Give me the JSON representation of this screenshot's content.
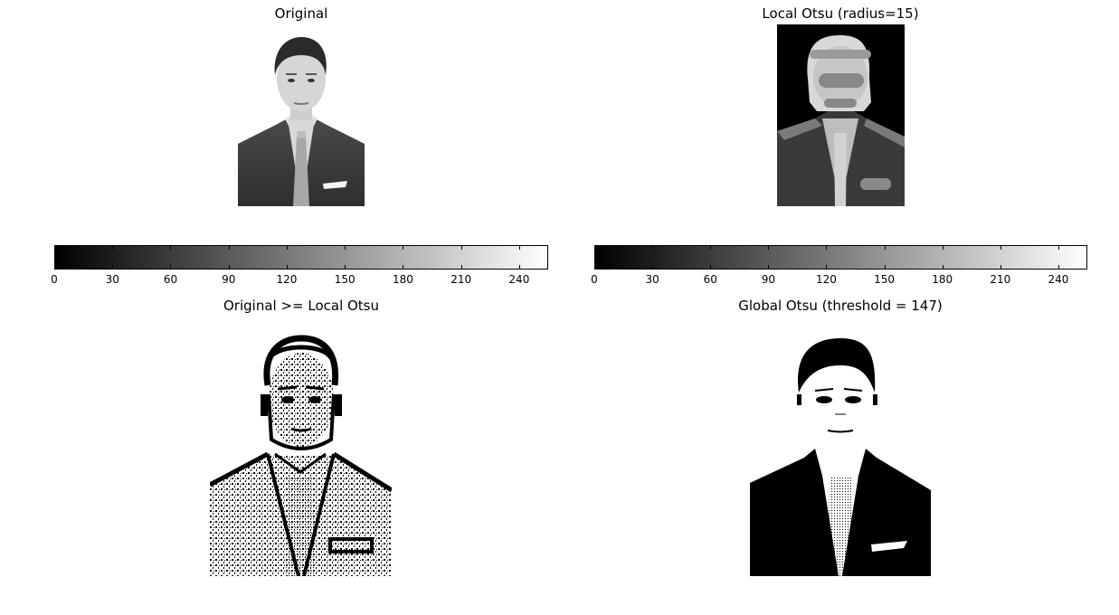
{
  "chart_data": [
    {
      "type": "image",
      "title": "Original",
      "colormap": "gray",
      "colorbar": {
        "orientation": "horizontal",
        "range": [
          0,
          255
        ],
        "ticks": [
          "0",
          "30",
          "60",
          "90",
          "120",
          "150",
          "180",
          "210",
          "240"
        ]
      }
    },
    {
      "type": "image",
      "title": "Local Otsu (radius=15)",
      "colormap": "gray",
      "colorbar": {
        "orientation": "horizontal",
        "range": [
          0,
          255
        ],
        "ticks": [
          "0",
          "30",
          "60",
          "90",
          "120",
          "150",
          "180",
          "210",
          "240"
        ]
      }
    },
    {
      "type": "image",
      "title": "Original >= Local Otsu",
      "colormap": "binary"
    },
    {
      "type": "image",
      "title": "Global Otsu (threshold = 147)",
      "colormap": "binary"
    }
  ]
}
